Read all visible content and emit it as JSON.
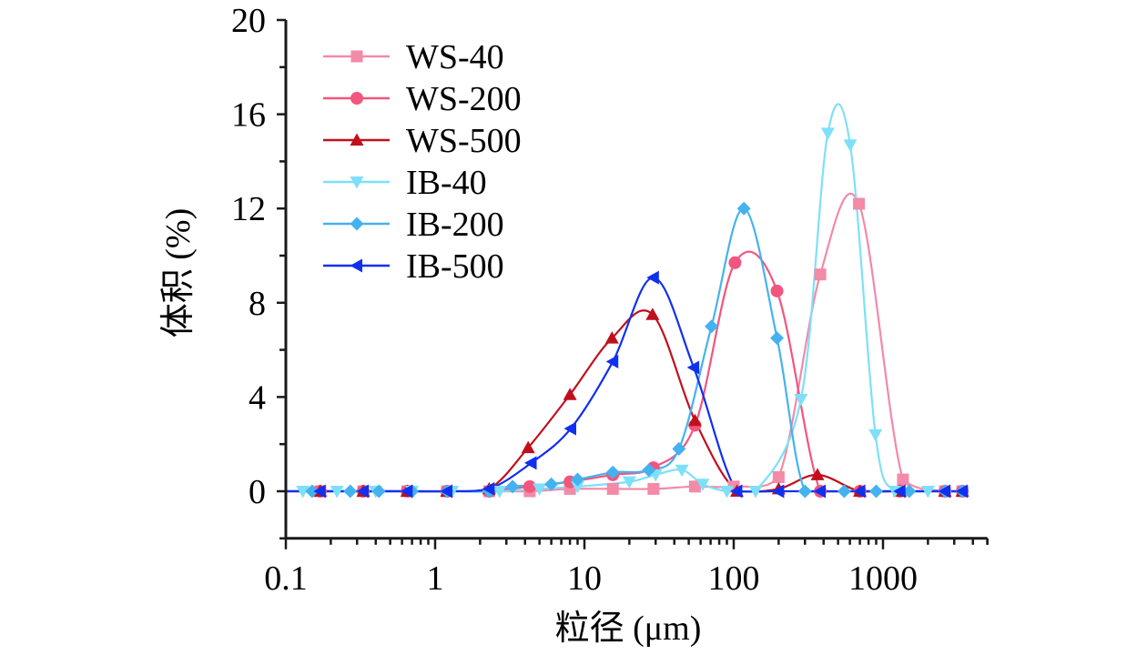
{
  "chart_data": {
    "type": "line",
    "title": "",
    "xlabel": "粒径 (μm)",
    "ylabel": "体积 (%)",
    "xscale": "log",
    "xlim": [
      0.1,
      5000
    ],
    "ylim": [
      -2,
      20
    ],
    "xticks": [
      0.1,
      1,
      10,
      100,
      1000
    ],
    "xtick_labels": [
      "0.1",
      "1",
      "10",
      "100",
      "1000"
    ],
    "yticks": [
      0,
      4,
      8,
      12,
      16,
      20
    ],
    "ytick_labels": [
      "0",
      "4",
      "8",
      "12",
      "16",
      "20"
    ],
    "grid": false,
    "legend_position": "top-left",
    "series": [
      {
        "name": "WS-40",
        "color": "#f28aa8",
        "marker": "square",
        "x": [
          0.17,
          0.33,
          0.65,
          1.2,
          2.3,
          4.3,
          8,
          15.5,
          29,
          55,
          100,
          200,
          380,
          690,
          1360,
          2600,
          3400
        ],
        "y": [
          0,
          0,
          0,
          0,
          0,
          0,
          0.1,
          0.1,
          0.1,
          0.2,
          0.2,
          0.6,
          9.2,
          12.2,
          0.5,
          0,
          0
        ]
      },
      {
        "name": "WS-200",
        "color": "#f2557e",
        "marker": "circle",
        "x": [
          0.17,
          0.33,
          0.65,
          1.2,
          2.3,
          4.3,
          8,
          15.5,
          29,
          55,
          102,
          195,
          380,
          700,
          1300,
          2600,
          3400
        ],
        "y": [
          0,
          0,
          0,
          0,
          0,
          0.2,
          0.4,
          0.7,
          1.0,
          2.8,
          9.7,
          8.5,
          0,
          0,
          0,
          0,
          0
        ]
      },
      {
        "name": "WS-500",
        "color": "#c0101c",
        "marker": "triangle-up",
        "x": [
          0.17,
          0.33,
          0.65,
          1.2,
          2.3,
          4.2,
          8,
          15.3,
          28.6,
          55,
          105,
          200,
          364,
          700,
          1300,
          2600,
          3400
        ],
        "y": [
          0,
          0,
          0,
          0,
          0.1,
          1.85,
          4.1,
          6.5,
          7.5,
          3.0,
          0,
          0.1,
          0.7,
          0,
          0,
          0,
          0
        ]
      },
      {
        "name": "IB-40",
        "color": "#7ee0f8",
        "marker": "triangle-down",
        "x": [
          0.13,
          0.22,
          0.4,
          0.7,
          1.3,
          2.7,
          5,
          9,
          20,
          30,
          45,
          62,
          90,
          140,
          282,
          427,
          603,
          890,
          1200,
          2000
        ],
        "y": [
          0,
          0,
          0,
          0,
          0,
          0,
          0.1,
          0.2,
          0.4,
          0.7,
          0.9,
          0.3,
          0,
          0,
          3.9,
          15.2,
          14.7,
          2.4,
          0,
          0
        ]
      },
      {
        "name": "IB-200",
        "color": "#45b2f0",
        "marker": "diamond",
        "x": [
          0.15,
          0.27,
          0.42,
          0.7,
          1.2,
          2.3,
          3.3,
          6,
          9,
          15.5,
          27,
          43,
          71,
          117,
          195,
          300,
          550,
          900,
          1500,
          2600,
          3400
        ],
        "y": [
          0,
          0,
          0,
          0,
          0,
          0,
          0.2,
          0.3,
          0.5,
          0.8,
          0.9,
          1.8,
          7.0,
          12.0,
          6.5,
          0,
          0,
          0,
          0,
          0,
          0
        ]
      },
      {
        "name": "IB-500",
        "color": "#1030f0",
        "marker": "triangle-left",
        "x": [
          0.17,
          0.33,
          0.65,
          1.2,
          2.3,
          4.4,
          8.1,
          15.5,
          29,
          54,
          105,
          200,
          380,
          700,
          1300,
          2600,
          3400
        ],
        "y": [
          0,
          0,
          0,
          0,
          0.1,
          1.2,
          2.66,
          5.5,
          9.07,
          5.25,
          0,
          0,
          0,
          0,
          0,
          0,
          0
        ]
      }
    ]
  }
}
